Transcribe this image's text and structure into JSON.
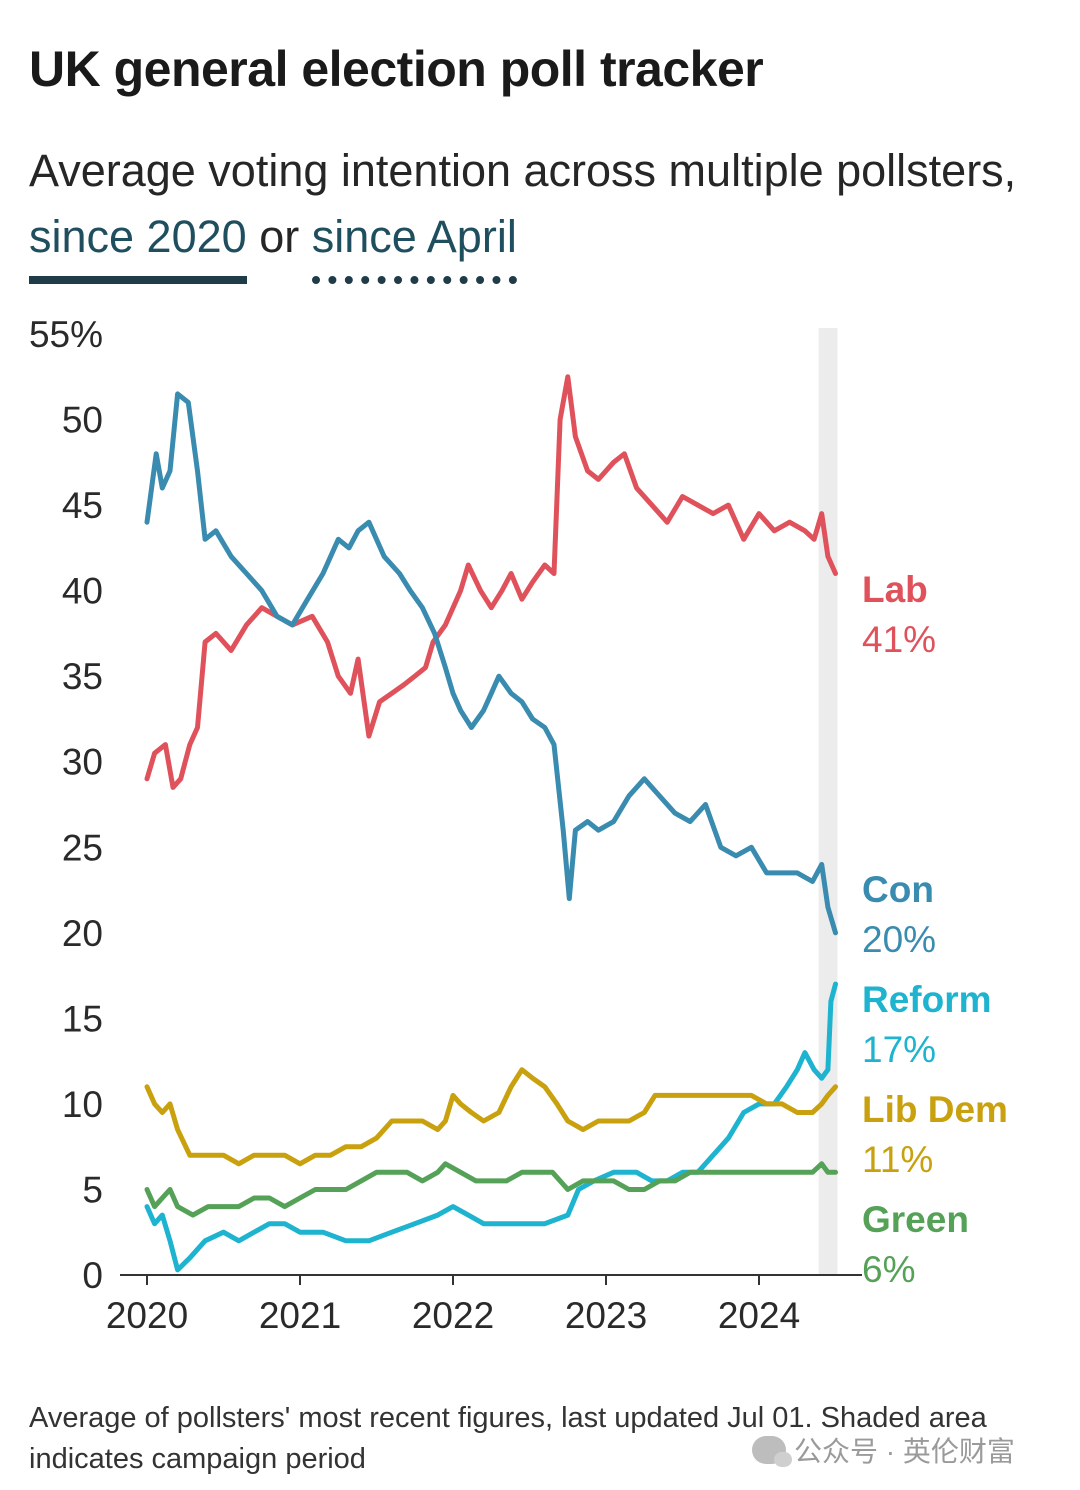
{
  "header": {
    "title": "UK general election poll tracker",
    "subtitle_text": "Average voting intention across multiple pollsters,",
    "link_2020": "since 2020",
    "link_or": "or",
    "link_april": "since April"
  },
  "footer": {
    "note": "Average of pollsters' most recent figures, last updated Jul 01. Shaded area indicates campaign period"
  },
  "watermark": {
    "text": "公众号 · 英伦财富"
  },
  "chart_data": {
    "type": "line",
    "title": "UK general election poll tracker",
    "xlabel": "",
    "ylabel": "",
    "x_unit": "year",
    "xlim": [
      2020.0,
      2024.5
    ],
    "ylim": [
      0,
      55
    ],
    "y_ticks": [
      {
        "value": 0,
        "label": "0"
      },
      {
        "value": 5,
        "label": "5"
      },
      {
        "value": 10,
        "label": "10"
      },
      {
        "value": 15,
        "label": "15"
      },
      {
        "value": 20,
        "label": "20"
      },
      {
        "value": 25,
        "label": "25"
      },
      {
        "value": 30,
        "label": "30"
      },
      {
        "value": 35,
        "label": "35"
      },
      {
        "value": 40,
        "label": "40"
      },
      {
        "value": 45,
        "label": "45"
      },
      {
        "value": 50,
        "label": "50"
      },
      {
        "value": 55,
        "label": "55%"
      }
    ],
    "x_ticks": [
      {
        "value": 2020,
        "label": "2020"
      },
      {
        "value": 2021,
        "label": "2021"
      },
      {
        "value": 2022,
        "label": "2022"
      },
      {
        "value": 2023,
        "label": "2023"
      },
      {
        "value": 2024,
        "label": "2024"
      }
    ],
    "shaded_period": {
      "x_start": 2024.39,
      "x_end": 2024.5,
      "label": "campaign period"
    },
    "series": [
      {
        "name": "Lab",
        "value_label": "41%",
        "color": "#e0525b",
        "points": [
          [
            2020.0,
            29
          ],
          [
            2020.05,
            30.5
          ],
          [
            2020.12,
            31
          ],
          [
            2020.17,
            28.5
          ],
          [
            2020.22,
            29
          ],
          [
            2020.28,
            31
          ],
          [
            2020.33,
            32
          ],
          [
            2020.38,
            37
          ],
          [
            2020.45,
            37.5
          ],
          [
            2020.55,
            36.5
          ],
          [
            2020.65,
            38
          ],
          [
            2020.75,
            39
          ],
          [
            2020.85,
            38.5
          ],
          [
            2020.95,
            38
          ],
          [
            2021.08,
            38.5
          ],
          [
            2021.18,
            37
          ],
          [
            2021.25,
            35
          ],
          [
            2021.33,
            34
          ],
          [
            2021.38,
            36
          ],
          [
            2021.45,
            31.5
          ],
          [
            2021.52,
            33.5
          ],
          [
            2021.6,
            34
          ],
          [
            2021.68,
            34.5
          ],
          [
            2021.75,
            35
          ],
          [
            2021.82,
            35.5
          ],
          [
            2021.87,
            37
          ],
          [
            2021.95,
            38
          ],
          [
            2022.05,
            40
          ],
          [
            2022.1,
            41.5
          ],
          [
            2022.18,
            40
          ],
          [
            2022.25,
            39
          ],
          [
            2022.32,
            40
          ],
          [
            2022.38,
            41
          ],
          [
            2022.45,
            39.5
          ],
          [
            2022.52,
            40.5
          ],
          [
            2022.6,
            41.5
          ],
          [
            2022.66,
            41
          ],
          [
            2022.7,
            50
          ],
          [
            2022.75,
            52.5
          ],
          [
            2022.8,
            49
          ],
          [
            2022.88,
            47
          ],
          [
            2022.95,
            46.5
          ],
          [
            2023.05,
            47.5
          ],
          [
            2023.12,
            48
          ],
          [
            2023.2,
            46
          ],
          [
            2023.3,
            45
          ],
          [
            2023.4,
            44
          ],
          [
            2023.5,
            45.5
          ],
          [
            2023.6,
            45
          ],
          [
            2023.7,
            44.5
          ],
          [
            2023.8,
            45
          ],
          [
            2023.9,
            43
          ],
          [
            2024.0,
            44.5
          ],
          [
            2024.1,
            43.5
          ],
          [
            2024.2,
            44
          ],
          [
            2024.3,
            43.5
          ],
          [
            2024.36,
            43
          ],
          [
            2024.41,
            44.5
          ],
          [
            2024.45,
            42
          ],
          [
            2024.5,
            41
          ]
        ]
      },
      {
        "name": "Con",
        "value_label": "20%",
        "color": "#3a8bb0",
        "points": [
          [
            2020.0,
            44
          ],
          [
            2020.03,
            46
          ],
          [
            2020.06,
            48
          ],
          [
            2020.1,
            46
          ],
          [
            2020.15,
            47
          ],
          [
            2020.2,
            51.5
          ],
          [
            2020.27,
            51
          ],
          [
            2020.33,
            47
          ],
          [
            2020.38,
            43
          ],
          [
            2020.45,
            43.5
          ],
          [
            2020.55,
            42
          ],
          [
            2020.65,
            41
          ],
          [
            2020.75,
            40
          ],
          [
            2020.85,
            38.5
          ],
          [
            2020.95,
            38
          ],
          [
            2021.05,
            39.5
          ],
          [
            2021.15,
            41
          ],
          [
            2021.25,
            43
          ],
          [
            2021.32,
            42.5
          ],
          [
            2021.38,
            43.5
          ],
          [
            2021.45,
            44
          ],
          [
            2021.55,
            42
          ],
          [
            2021.65,
            41
          ],
          [
            2021.72,
            40
          ],
          [
            2021.8,
            39
          ],
          [
            2021.88,
            37.5
          ],
          [
            2021.95,
            35.5
          ],
          [
            2022.0,
            34
          ],
          [
            2022.05,
            33
          ],
          [
            2022.12,
            32
          ],
          [
            2022.2,
            33
          ],
          [
            2022.25,
            34
          ],
          [
            2022.3,
            35
          ],
          [
            2022.38,
            34
          ],
          [
            2022.45,
            33.5
          ],
          [
            2022.52,
            32.5
          ],
          [
            2022.6,
            32
          ],
          [
            2022.66,
            31
          ],
          [
            2022.72,
            26
          ],
          [
            2022.76,
            22
          ],
          [
            2022.8,
            26
          ],
          [
            2022.88,
            26.5
          ],
          [
            2022.95,
            26
          ],
          [
            2023.05,
            26.5
          ],
          [
            2023.15,
            28
          ],
          [
            2023.25,
            29
          ],
          [
            2023.35,
            28
          ],
          [
            2023.45,
            27
          ],
          [
            2023.55,
            26.5
          ],
          [
            2023.65,
            27.5
          ],
          [
            2023.75,
            25
          ],
          [
            2023.85,
            24.5
          ],
          [
            2023.95,
            25
          ],
          [
            2024.05,
            23.5
          ],
          [
            2024.15,
            23.5
          ],
          [
            2024.25,
            23.5
          ],
          [
            2024.35,
            23
          ],
          [
            2024.41,
            24
          ],
          [
            2024.45,
            21.5
          ],
          [
            2024.5,
            20
          ]
        ]
      },
      {
        "name": "Reform",
        "value_label": "17%",
        "color": "#1eb3cf",
        "points": [
          [
            2020.0,
            4
          ],
          [
            2020.05,
            3
          ],
          [
            2020.1,
            3.5
          ],
          [
            2020.15,
            2
          ],
          [
            2020.2,
            0.3
          ],
          [
            2020.28,
            1
          ],
          [
            2020.38,
            2
          ],
          [
            2020.5,
            2.5
          ],
          [
            2020.6,
            2
          ],
          [
            2020.7,
            2.5
          ],
          [
            2020.8,
            3
          ],
          [
            2020.9,
            3
          ],
          [
            2021.0,
            2.5
          ],
          [
            2021.15,
            2.5
          ],
          [
            2021.3,
            2
          ],
          [
            2021.45,
            2
          ],
          [
            2021.6,
            2.5
          ],
          [
            2021.75,
            3
          ],
          [
            2021.9,
            3.5
          ],
          [
            2022.0,
            4
          ],
          [
            2022.1,
            3.5
          ],
          [
            2022.2,
            3
          ],
          [
            2022.3,
            3
          ],
          [
            2022.45,
            3
          ],
          [
            2022.6,
            3
          ],
          [
            2022.75,
            3.5
          ],
          [
            2022.82,
            5
          ],
          [
            2022.92,
            5.5
          ],
          [
            2023.05,
            6
          ],
          [
            2023.2,
            6
          ],
          [
            2023.3,
            5.5
          ],
          [
            2023.4,
            5.5
          ],
          [
            2023.5,
            6
          ],
          [
            2023.6,
            6
          ],
          [
            2023.7,
            7
          ],
          [
            2023.8,
            8
          ],
          [
            2023.9,
            9.5
          ],
          [
            2024.0,
            10
          ],
          [
            2024.1,
            10
          ],
          [
            2024.18,
            11
          ],
          [
            2024.25,
            12
          ],
          [
            2024.3,
            13
          ],
          [
            2024.36,
            12
          ],
          [
            2024.41,
            11.5
          ],
          [
            2024.45,
            12
          ],
          [
            2024.47,
            16
          ],
          [
            2024.5,
            17
          ]
        ]
      },
      {
        "name": "Lib Dem",
        "value_label": "11%",
        "color": "#c9a10f",
        "points": [
          [
            2020.0,
            11
          ],
          [
            2020.05,
            10
          ],
          [
            2020.1,
            9.5
          ],
          [
            2020.15,
            10
          ],
          [
            2020.2,
            8.5
          ],
          [
            2020.28,
            7
          ],
          [
            2020.38,
            7
          ],
          [
            2020.5,
            7
          ],
          [
            2020.6,
            6.5
          ],
          [
            2020.7,
            7
          ],
          [
            2020.8,
            7
          ],
          [
            2020.9,
            7
          ],
          [
            2021.0,
            6.5
          ],
          [
            2021.1,
            7
          ],
          [
            2021.2,
            7
          ],
          [
            2021.3,
            7.5
          ],
          [
            2021.4,
            7.5
          ],
          [
            2021.5,
            8
          ],
          [
            2021.6,
            9
          ],
          [
            2021.7,
            9
          ],
          [
            2021.8,
            9
          ],
          [
            2021.9,
            8.5
          ],
          [
            2021.95,
            9
          ],
          [
            2022.0,
            10.5
          ],
          [
            2022.05,
            10
          ],
          [
            2022.12,
            9.5
          ],
          [
            2022.2,
            9
          ],
          [
            2022.3,
            9.5
          ],
          [
            2022.38,
            11
          ],
          [
            2022.45,
            12
          ],
          [
            2022.52,
            11.5
          ],
          [
            2022.6,
            11
          ],
          [
            2022.68,
            10
          ],
          [
            2022.75,
            9
          ],
          [
            2022.85,
            8.5
          ],
          [
            2022.95,
            9
          ],
          [
            2023.05,
            9
          ],
          [
            2023.15,
            9
          ],
          [
            2023.25,
            9.5
          ],
          [
            2023.32,
            10.5
          ],
          [
            2023.45,
            10.5
          ],
          [
            2023.55,
            10.5
          ],
          [
            2023.65,
            10.5
          ],
          [
            2023.75,
            10.5
          ],
          [
            2023.85,
            10.5
          ],
          [
            2023.95,
            10.5
          ],
          [
            2024.05,
            10
          ],
          [
            2024.15,
            10
          ],
          [
            2024.25,
            9.5
          ],
          [
            2024.35,
            9.5
          ],
          [
            2024.41,
            10
          ],
          [
            2024.45,
            10.5
          ],
          [
            2024.5,
            11
          ]
        ]
      },
      {
        "name": "Green",
        "value_label": "6%",
        "color": "#55a157",
        "points": [
          [
            2020.0,
            5
          ],
          [
            2020.05,
            4
          ],
          [
            2020.1,
            4.5
          ],
          [
            2020.15,
            5
          ],
          [
            2020.2,
            4
          ],
          [
            2020.3,
            3.5
          ],
          [
            2020.4,
            4
          ],
          [
            2020.5,
            4
          ],
          [
            2020.6,
            4
          ],
          [
            2020.7,
            4.5
          ],
          [
            2020.8,
            4.5
          ],
          [
            2020.9,
            4
          ],
          [
            2021.0,
            4.5
          ],
          [
            2021.1,
            5
          ],
          [
            2021.2,
            5
          ],
          [
            2021.3,
            5
          ],
          [
            2021.4,
            5.5
          ],
          [
            2021.5,
            6
          ],
          [
            2021.6,
            6
          ],
          [
            2021.7,
            6
          ],
          [
            2021.8,
            5.5
          ],
          [
            2021.9,
            6
          ],
          [
            2021.95,
            6.5
          ],
          [
            2022.05,
            6
          ],
          [
            2022.15,
            5.5
          ],
          [
            2022.25,
            5.5
          ],
          [
            2022.35,
            5.5
          ],
          [
            2022.45,
            6
          ],
          [
            2022.55,
            6
          ],
          [
            2022.65,
            6
          ],
          [
            2022.75,
            5
          ],
          [
            2022.85,
            5.5
          ],
          [
            2022.95,
            5.5
          ],
          [
            2023.05,
            5.5
          ],
          [
            2023.15,
            5
          ],
          [
            2023.25,
            5
          ],
          [
            2023.35,
            5.5
          ],
          [
            2023.45,
            5.5
          ],
          [
            2023.55,
            6
          ],
          [
            2023.65,
            6
          ],
          [
            2023.75,
            6
          ],
          [
            2023.85,
            6
          ],
          [
            2023.95,
            6
          ],
          [
            2024.05,
            6
          ],
          [
            2024.15,
            6
          ],
          [
            2024.25,
            6
          ],
          [
            2024.35,
            6
          ],
          [
            2024.41,
            6.5
          ],
          [
            2024.45,
            6
          ],
          [
            2024.5,
            6
          ]
        ]
      }
    ]
  }
}
